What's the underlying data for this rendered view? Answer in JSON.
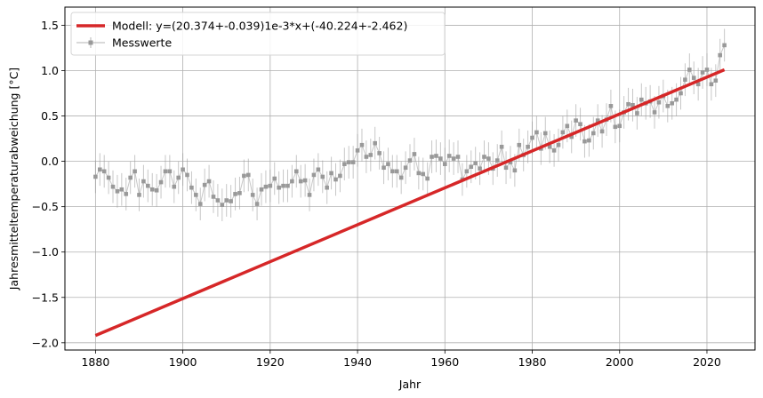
{
  "chart_data": {
    "type": "scatter",
    "title": "",
    "xlabel": "Jahr",
    "ylabel": "Jahresmitteltemperaturabweichung [°C]",
    "xlim": [
      1873,
      2031
    ],
    "ylim": [
      -2.08,
      1.7
    ],
    "grid": true,
    "legend_placement": "top-left",
    "x_ticks": [
      1880,
      1900,
      1920,
      1940,
      1960,
      1980,
      2000,
      2020
    ],
    "x_tick_labels": [
      "1880",
      "1900",
      "1920",
      "1940",
      "1960",
      "1980",
      "2000",
      "2020"
    ],
    "y_ticks": [
      -2.0,
      -1.5,
      -1.0,
      -0.5,
      0.0,
      0.5,
      1.0,
      1.5
    ],
    "y_tick_labels": [
      "−2.0",
      "−1.5",
      "−1.0",
      "−0.5",
      "0.0",
      "0.5",
      "1.0",
      "1.5"
    ],
    "series": [
      {
        "name": "Modell: y=(20.374+-0.039)1e-3*x+(-40.224+-2.462)",
        "kind": "line",
        "color": "#d62728",
        "x": [
          1880,
          2024
        ],
        "y": [
          -1.92,
          1.01
        ]
      },
      {
        "name": "Messwerte",
        "kind": "errorbar",
        "color": "#999999",
        "x_start": 1880,
        "y": [
          -0.17,
          -0.09,
          -0.11,
          -0.18,
          -0.28,
          -0.33,
          -0.31,
          -0.36,
          -0.18,
          -0.11,
          -0.37,
          -0.22,
          -0.27,
          -0.31,
          -0.32,
          -0.23,
          -0.11,
          -0.11,
          -0.28,
          -0.18,
          -0.09,
          -0.15,
          -0.29,
          -0.37,
          -0.47,
          -0.26,
          -0.22,
          -0.39,
          -0.43,
          -0.48,
          -0.43,
          -0.44,
          -0.36,
          -0.35,
          -0.16,
          -0.15,
          -0.37,
          -0.47,
          -0.31,
          -0.28,
          -0.27,
          -0.19,
          -0.29,
          -0.27,
          -0.27,
          -0.22,
          -0.11,
          -0.22,
          -0.21,
          -0.37,
          -0.15,
          -0.09,
          -0.17,
          -0.29,
          -0.13,
          -0.2,
          -0.16,
          -0.03,
          -0.01,
          -0.01,
          0.12,
          0.18,
          0.05,
          0.07,
          0.2,
          0.09,
          -0.07,
          -0.03,
          -0.11,
          -0.11,
          -0.18,
          -0.07,
          0.01,
          0.08,
          -0.13,
          -0.14,
          -0.19,
          0.05,
          0.06,
          0.03,
          -0.03,
          0.06,
          0.03,
          0.05,
          -0.2,
          -0.11,
          -0.06,
          -0.02,
          -0.08,
          0.05,
          0.03,
          -0.08,
          0.01,
          0.16,
          -0.07,
          -0.01,
          -0.1,
          0.18,
          0.07,
          0.16,
          0.26,
          0.32,
          0.14,
          0.31,
          0.16,
          0.12,
          0.18,
          0.32,
          0.39,
          0.27,
          0.45,
          0.41,
          0.22,
          0.23,
          0.31,
          0.45,
          0.33,
          0.46,
          0.61,
          0.38,
          0.39,
          0.54,
          0.63,
          0.62,
          0.53,
          0.68,
          0.64,
          0.66,
          0.54,
          0.65,
          0.72,
          0.61,
          0.64,
          0.68,
          0.75,
          0.9,
          1.01,
          0.92,
          0.85,
          0.98,
          1.01,
          0.85,
          0.89,
          1.17,
          1.28
        ],
        "err": 0.18
      }
    ]
  }
}
